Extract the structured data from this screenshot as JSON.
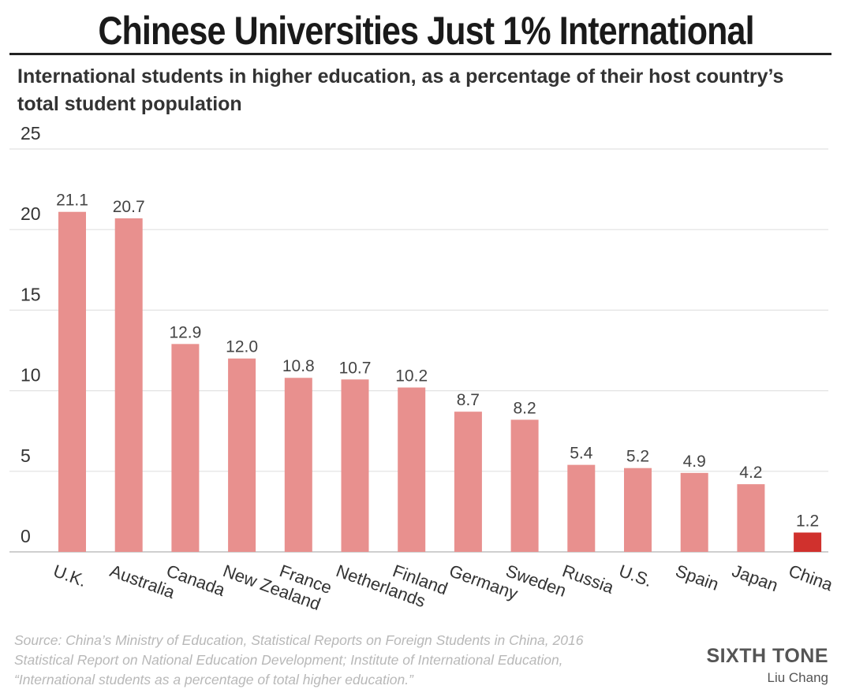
{
  "title": "Chinese Universities Just 1% International",
  "subtitle": "International students in higher education, as a percentage of their host country’s total student population",
  "source": "Source: China’s Ministry of Education, Statistical Reports on Foreign Students in China, 2016 Statistical Report on National Education Development; Institute of International Education, “International students as a percentage of total higher education.”",
  "brand": "SIXTH TONE",
  "author": "Liu Chang",
  "chart_data": {
    "type": "bar",
    "title": "Chinese Universities Just 1% International",
    "xlabel": "",
    "ylabel": "",
    "ylim": [
      0,
      25
    ],
    "yticks": [
      0,
      5,
      10,
      15,
      20,
      25
    ],
    "grid": true,
    "categories": [
      "U.K.",
      "Australia",
      "Canada",
      "New Zealand",
      "France",
      "Netherlands",
      "Finland",
      "Germany",
      "Sweden",
      "Russia",
      "U.S.",
      "Spain",
      "Japan",
      "China"
    ],
    "values": [
      21.1,
      20.7,
      12.9,
      12.0,
      10.8,
      10.7,
      10.2,
      8.7,
      8.2,
      5.4,
      5.2,
      4.9,
      4.2,
      1.2
    ],
    "value_labels": [
      "21.1",
      "20.7",
      "12.9",
      "12.0",
      "10.8",
      "10.7",
      "10.2",
      "8.7",
      "8.2",
      "5.4",
      "5.2",
      "4.9",
      "4.2",
      "1.2"
    ],
    "colors": {
      "default": "#e8908e",
      "highlight": "#d0312d"
    },
    "highlight": "China"
  }
}
